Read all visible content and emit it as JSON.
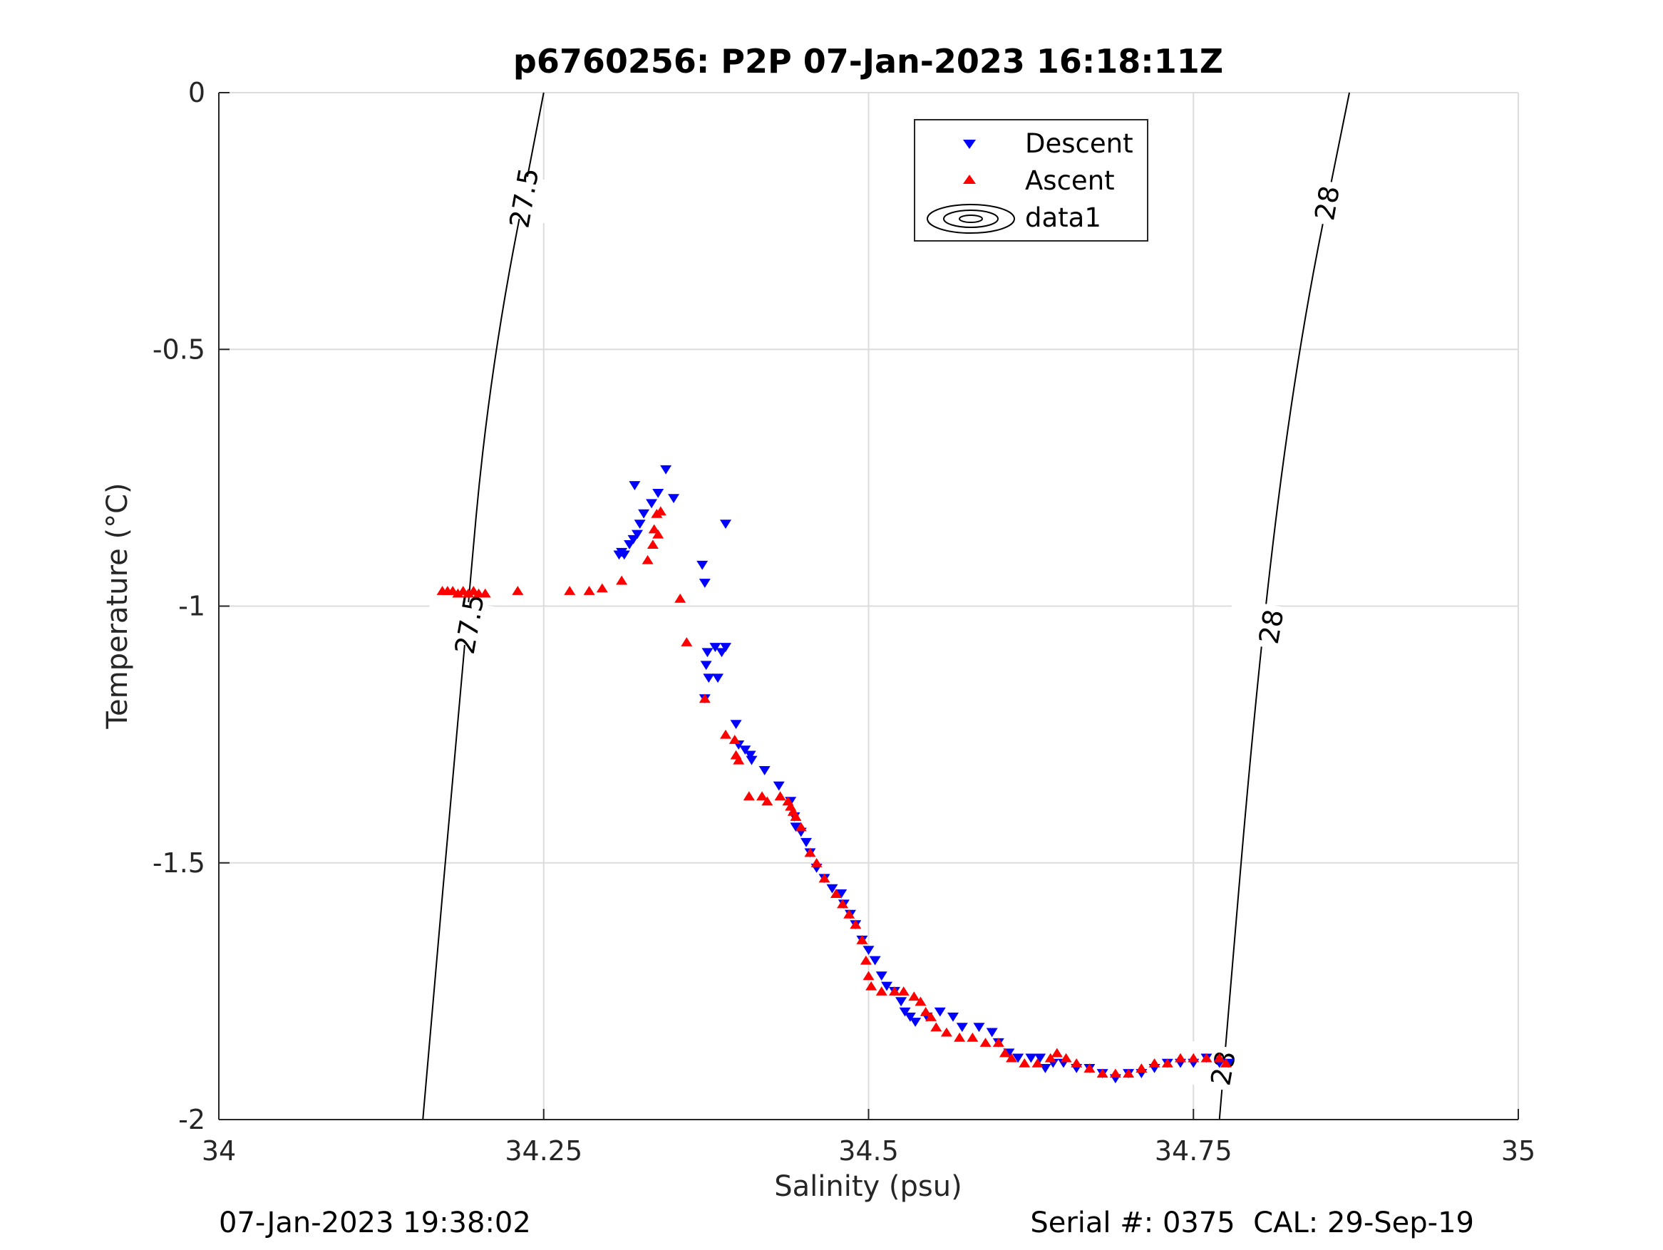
{
  "chart_data": {
    "type": "scatter",
    "title": "p6760256: P2P 07-Jan-2023 16:18:11Z",
    "xlabel": "Salinity (psu)",
    "ylabel": "Temperature (°C)",
    "xlim": [
      34,
      35
    ],
    "ylim": [
      -2,
      0
    ],
    "x_ticks": [
      34,
      34.25,
      34.5,
      34.75,
      35
    ],
    "x_tick_labels": [
      "34",
      "34.25",
      "34.5",
      "34.75",
      "35"
    ],
    "y_ticks": [
      0,
      -0.5,
      -1,
      -1.5,
      -2
    ],
    "y_tick_labels": [
      "0",
      "-0.5",
      "-1",
      "-1.5",
      "-2"
    ],
    "grid": true,
    "legend_position": "top-right",
    "colors": {
      "descent": "#0000ff",
      "ascent": "#ff0000",
      "contour": "#000000",
      "grid": "#dcdcdc"
    },
    "contours": [
      {
        "label": "27.5",
        "points": [
          [
            34.157,
            -2.0
          ],
          [
            34.188,
            -1.1
          ],
          [
            34.208,
            -0.55
          ],
          [
            34.25,
            0.0
          ]
        ]
      },
      {
        "label": "28",
        "points": [
          [
            34.77,
            -2.0
          ],
          [
            34.8,
            -1.1
          ],
          [
            34.83,
            -0.5
          ],
          [
            34.87,
            0.0
          ]
        ]
      }
    ],
    "contour_labels": [
      {
        "text": "27.5",
        "x": 34.235,
        "y": -0.205
      },
      {
        "text": "27.5",
        "x": 34.193,
        "y": -1.035
      },
      {
        "text": "28",
        "x": 34.853,
        "y": -0.215
      },
      {
        "text": "28",
        "x": 34.81,
        "y": -1.04
      },
      {
        "text": "28",
        "x": 34.773,
        "y": -1.9
      }
    ],
    "legend": [
      {
        "label": "Descent",
        "marker": "triangle-down"
      },
      {
        "label": "Ascent",
        "marker": "triangle-up"
      },
      {
        "label": "data1",
        "marker": "contour-ellipse"
      }
    ],
    "series": [
      {
        "name": "Descent",
        "marker": "triangle-down",
        "points": [
          [
            34.344,
            -0.734
          ],
          [
            34.32,
            -0.765
          ],
          [
            34.35,
            -0.79
          ],
          [
            34.338,
            -0.78
          ],
          [
            34.333,
            -0.8
          ],
          [
            34.327,
            -0.82
          ],
          [
            34.324,
            -0.84
          ],
          [
            34.322,
            -0.86
          ],
          [
            34.319,
            -0.87
          ],
          [
            34.316,
            -0.88
          ],
          [
            34.312,
            -0.9
          ],
          [
            34.308,
            -0.9
          ],
          [
            34.31,
            -0.895
          ],
          [
            34.39,
            -0.84
          ],
          [
            34.372,
            -0.92
          ],
          [
            34.374,
            -0.955
          ],
          [
            34.382,
            -1.08
          ],
          [
            34.39,
            -1.08
          ],
          [
            34.387,
            -1.09
          ],
          [
            34.376,
            -1.09
          ],
          [
            34.375,
            -1.115
          ],
          [
            34.377,
            -1.14
          ],
          [
            34.384,
            -1.14
          ],
          [
            34.374,
            -1.18
          ],
          [
            34.398,
            -1.23
          ],
          [
            34.4,
            -1.27
          ],
          [
            34.405,
            -1.28
          ],
          [
            34.409,
            -1.29
          ],
          [
            34.41,
            -1.3
          ],
          [
            34.42,
            -1.32
          ],
          [
            34.431,
            -1.35
          ],
          [
            34.44,
            -1.38
          ],
          [
            34.443,
            -1.41
          ],
          [
            34.444,
            -1.43
          ],
          [
            34.448,
            -1.44
          ],
          [
            34.452,
            -1.46
          ],
          [
            34.455,
            -1.48
          ],
          [
            34.46,
            -1.51
          ],
          [
            34.466,
            -1.53
          ],
          [
            34.472,
            -1.55
          ],
          [
            34.479,
            -1.56
          ],
          [
            34.481,
            -1.58
          ],
          [
            34.486,
            -1.6
          ],
          [
            34.49,
            -1.62
          ],
          [
            34.495,
            -1.65
          ],
          [
            34.5,
            -1.67
          ],
          [
            34.505,
            -1.69
          ],
          [
            34.51,
            -1.72
          ],
          [
            34.514,
            -1.74
          ],
          [
            34.52,
            -1.75
          ],
          [
            34.525,
            -1.77
          ],
          [
            34.528,
            -1.79
          ],
          [
            34.532,
            -1.8
          ],
          [
            34.536,
            -1.81
          ],
          [
            34.545,
            -1.8
          ],
          [
            34.555,
            -1.79
          ],
          [
            34.565,
            -1.8
          ],
          [
            34.572,
            -1.82
          ],
          [
            34.585,
            -1.82
          ],
          [
            34.595,
            -1.83
          ],
          [
            34.6,
            -1.85
          ],
          [
            34.608,
            -1.87
          ],
          [
            34.615,
            -1.88
          ],
          [
            34.625,
            -1.88
          ],
          [
            34.632,
            -1.88
          ],
          [
            34.636,
            -1.9
          ],
          [
            34.642,
            -1.89
          ],
          [
            34.65,
            -1.89
          ],
          [
            34.66,
            -1.9
          ],
          [
            34.67,
            -1.9
          ],
          [
            34.68,
            -1.91
          ],
          [
            34.69,
            -1.92
          ],
          [
            34.7,
            -1.91
          ],
          [
            34.71,
            -1.91
          ],
          [
            34.72,
            -1.9
          ],
          [
            34.73,
            -1.89
          ],
          [
            34.74,
            -1.89
          ],
          [
            34.75,
            -1.89
          ],
          [
            34.76,
            -1.88
          ],
          [
            34.77,
            -1.89
          ],
          [
            34.777,
            -1.89
          ]
        ]
      },
      {
        "name": "Ascent",
        "marker": "triangle-up",
        "points": [
          [
            34.172,
            -0.97
          ],
          [
            34.176,
            -0.97
          ],
          [
            34.18,
            -0.97
          ],
          [
            34.184,
            -0.975
          ],
          [
            34.188,
            -0.97
          ],
          [
            34.192,
            -0.975
          ],
          [
            34.196,
            -0.97
          ],
          [
            34.2,
            -0.975
          ],
          [
            34.205,
            -0.975
          ],
          [
            34.23,
            -0.97
          ],
          [
            34.27,
            -0.97
          ],
          [
            34.285,
            -0.97
          ],
          [
            34.295,
            -0.965
          ],
          [
            34.31,
            -0.95
          ],
          [
            34.33,
            -0.91
          ],
          [
            34.334,
            -0.88
          ],
          [
            34.335,
            -0.85
          ],
          [
            34.337,
            -0.82
          ],
          [
            34.34,
            -0.815
          ],
          [
            34.338,
            -0.86
          ],
          [
            34.355,
            -0.985
          ],
          [
            34.36,
            -1.07
          ],
          [
            34.374,
            -1.18
          ],
          [
            34.39,
            -1.25
          ],
          [
            34.397,
            -1.26
          ],
          [
            34.398,
            -1.29
          ],
          [
            34.4,
            -1.3
          ],
          [
            34.408,
            -1.37
          ],
          [
            34.418,
            -1.37
          ],
          [
            34.422,
            -1.38
          ],
          [
            34.432,
            -1.37
          ],
          [
            34.438,
            -1.38
          ],
          [
            34.44,
            -1.39
          ],
          [
            34.442,
            -1.4
          ],
          [
            34.444,
            -1.41
          ],
          [
            34.448,
            -1.43
          ],
          [
            34.455,
            -1.48
          ],
          [
            34.46,
            -1.5
          ],
          [
            34.466,
            -1.53
          ],
          [
            34.475,
            -1.56
          ],
          [
            34.48,
            -1.58
          ],
          [
            34.485,
            -1.6
          ],
          [
            34.49,
            -1.62
          ],
          [
            34.495,
            -1.65
          ],
          [
            34.498,
            -1.69
          ],
          [
            34.5,
            -1.72
          ],
          [
            34.502,
            -1.74
          ],
          [
            34.51,
            -1.75
          ],
          [
            34.52,
            -1.75
          ],
          [
            34.527,
            -1.75
          ],
          [
            34.535,
            -1.76
          ],
          [
            34.54,
            -1.77
          ],
          [
            34.544,
            -1.79
          ],
          [
            34.548,
            -1.8
          ],
          [
            34.552,
            -1.82
          ],
          [
            34.56,
            -1.83
          ],
          [
            34.57,
            -1.84
          ],
          [
            34.58,
            -1.84
          ],
          [
            34.59,
            -1.85
          ],
          [
            34.6,
            -1.85
          ],
          [
            34.605,
            -1.87
          ],
          [
            34.61,
            -1.88
          ],
          [
            34.62,
            -1.89
          ],
          [
            34.63,
            -1.89
          ],
          [
            34.64,
            -1.88
          ],
          [
            34.645,
            -1.87
          ],
          [
            34.652,
            -1.88
          ],
          [
            34.66,
            -1.89
          ],
          [
            34.67,
            -1.9
          ],
          [
            34.68,
            -1.91
          ],
          [
            34.69,
            -1.91
          ],
          [
            34.7,
            -1.91
          ],
          [
            34.71,
            -1.9
          ],
          [
            34.72,
            -1.89
          ],
          [
            34.73,
            -1.89
          ],
          [
            34.74,
            -1.88
          ],
          [
            34.75,
            -1.88
          ],
          [
            34.76,
            -1.88
          ],
          [
            34.77,
            -1.88
          ],
          [
            34.775,
            -1.89
          ]
        ]
      }
    ]
  },
  "footer": {
    "left_text": "07-Jan-2023 19:38:02",
    "right_text": "Serial #: 0375  CAL: 29-Sep-19"
  }
}
